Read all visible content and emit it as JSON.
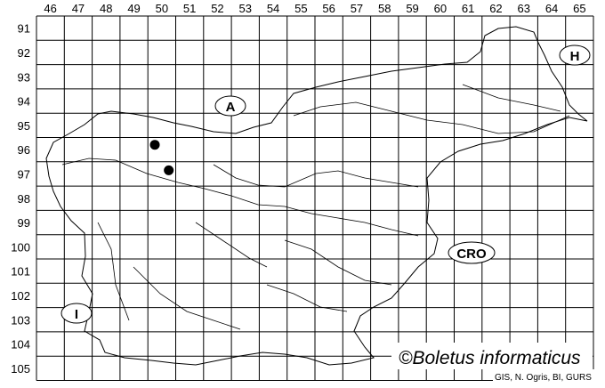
{
  "map": {
    "columns": [
      "46",
      "47",
      "48",
      "49",
      "50",
      "51",
      "52",
      "53",
      "54",
      "55",
      "56",
      "57",
      "58",
      "59",
      "60",
      "61",
      "62",
      "63",
      "64",
      "65"
    ],
    "rows": [
      "91",
      "92",
      "93",
      "94",
      "95",
      "96",
      "97",
      "98",
      "99",
      "100",
      "101",
      "102",
      "103",
      "104",
      "105"
    ],
    "neighbour_labels": [
      {
        "id": "austria",
        "text": "A"
      },
      {
        "id": "hungary",
        "text": "H"
      },
      {
        "id": "croatia",
        "text": "CRO"
      },
      {
        "id": "italy",
        "text": "I"
      }
    ],
    "records": [
      {
        "column": "50",
        "row": "96"
      },
      {
        "column": "50",
        "row": "97"
      }
    ],
    "colors": {
      "grid": "#000000",
      "outline": "#000000",
      "record": "#000000",
      "background": "#ffffff"
    }
  },
  "copyright": "©Boletus informaticus",
  "credits": "GIS, N. Ogris, BI, GURS"
}
